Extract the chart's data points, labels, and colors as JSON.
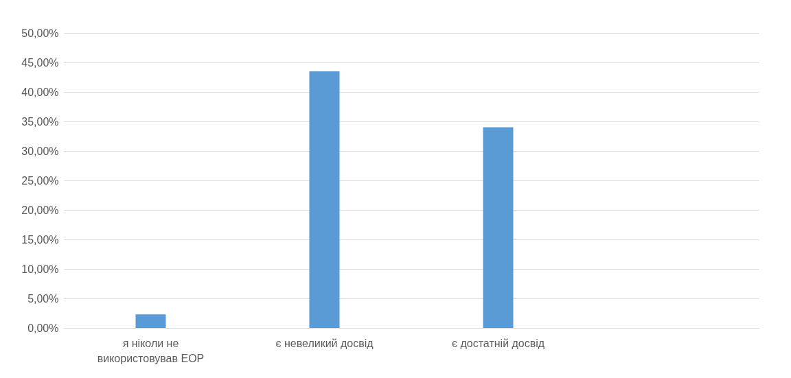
{
  "chart_data": {
    "type": "bar",
    "categories": [
      "я ніколи не використовував ЕОР",
      "є невеликий досвід",
      "є достатній досвід",
      null
    ],
    "values": [
      2.3,
      43.5,
      34.0,
      null
    ],
    "color": "#5b9bd5",
    "ylim": [
      0,
      50
    ],
    "yticks": [
      {
        "value": 0,
        "label": "0,00%"
      },
      {
        "value": 5,
        "label": "5,00%"
      },
      {
        "value": 10,
        "label": "10,00%"
      },
      {
        "value": 15,
        "label": "15,00%"
      },
      {
        "value": 20,
        "label": "20,00%"
      },
      {
        "value": 25,
        "label": "25,00%"
      },
      {
        "value": 30,
        "label": "30,00%"
      },
      {
        "value": 35,
        "label": "35,00%"
      },
      {
        "value": 40,
        "label": "40,00%"
      },
      {
        "value": 45,
        "label": "45,00%"
      },
      {
        "value": 50,
        "label": "50,00%"
      }
    ],
    "grid": "y"
  }
}
